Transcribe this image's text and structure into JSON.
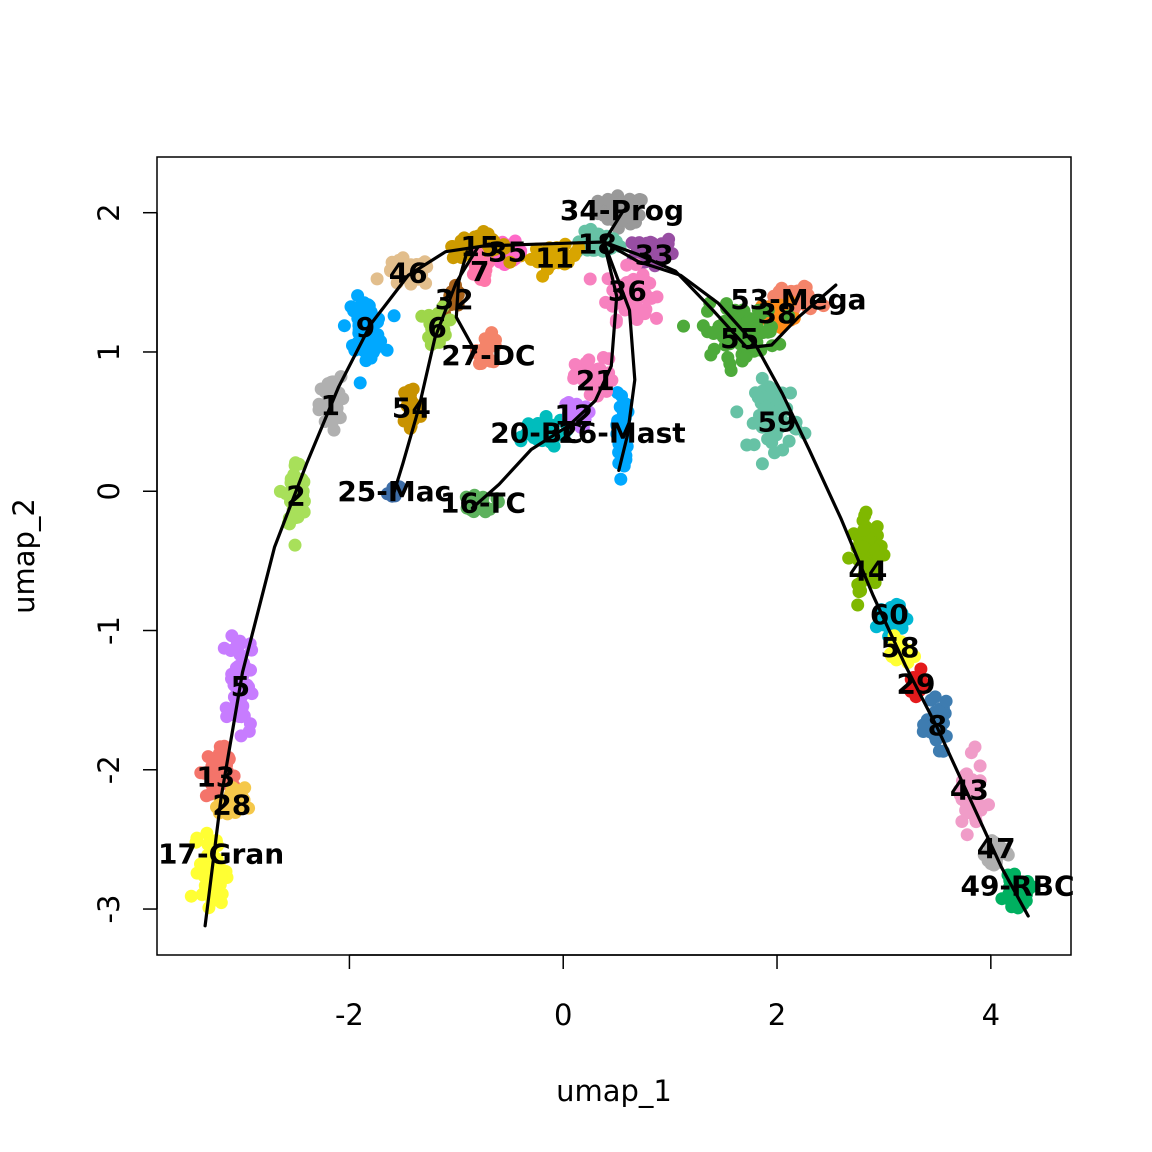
{
  "chart_data": {
    "type": "scatter",
    "title": "",
    "xlabel": "umap_1",
    "ylabel": "umap_2",
    "xlim": [
      -3.8,
      4.75
    ],
    "ylim": [
      -3.33,
      2.4
    ],
    "x_ticks": [
      -2,
      0,
      2,
      4
    ],
    "y_ticks": [
      -3,
      -2,
      -1,
      0,
      1,
      2
    ],
    "x_tick_labels": [
      "-2",
      "0",
      "2",
      "4"
    ],
    "y_tick_labels": [
      "-3",
      "-2",
      "-1",
      "0",
      "1",
      "2"
    ],
    "grid": false,
    "legend": "none",
    "clusters": [
      {
        "label": "34-Prog",
        "x": 0.55,
        "y": 2.02,
        "label_x": 0.55,
        "label_y": 2.02,
        "color": "#999999",
        "spread": [
          0.22,
          0.1
        ],
        "n": 60
      },
      {
        "label": "18",
        "x": 0.32,
        "y": 1.78,
        "label_x": 0.32,
        "label_y": 1.78,
        "color": "#66c2a5",
        "spread": [
          0.2,
          0.08
        ],
        "n": 50
      },
      {
        "label": "33",
        "x": 0.85,
        "y": 1.72,
        "label_x": 0.85,
        "label_y": 1.7,
        "color": "#984ea3",
        "spread": [
          0.18,
          0.12
        ],
        "n": 55
      },
      {
        "label": "36",
        "x": 0.6,
        "y": 1.42,
        "label_x": 0.6,
        "label_y": 1.44,
        "color": "#f781bf",
        "spread": [
          0.2,
          0.18
        ],
        "n": 60
      },
      {
        "label": "11",
        "x": -0.08,
        "y": 1.68,
        "label_x": -0.08,
        "label_y": 1.68,
        "color": "#d8a500",
        "spread": [
          0.22,
          0.08
        ],
        "n": 45
      },
      {
        "label": "35",
        "x": -0.52,
        "y": 1.72,
        "label_x": -0.52,
        "label_y": 1.72,
        "color": "#ff69c8",
        "spread": [
          0.15,
          0.07
        ],
        "n": 35
      },
      {
        "label": "15",
        "x": -0.78,
        "y": 1.76,
        "label_x": -0.78,
        "label_y": 1.76,
        "color": "#cc9a00",
        "spread": [
          0.25,
          0.09
        ],
        "n": 60
      },
      {
        "label": "7",
        "x": -0.78,
        "y": 1.58,
        "label_x": -0.78,
        "label_y": 1.58,
        "color": "#ff77aa",
        "spread": [
          0.1,
          0.08
        ],
        "n": 20
      },
      {
        "label": "46",
        "x": -1.45,
        "y": 1.57,
        "label_x": -1.45,
        "label_y": 1.57,
        "color": "#e2be8c",
        "spread": [
          0.22,
          0.1
        ],
        "n": 45
      },
      {
        "label": "32",
        "x": -1.02,
        "y": 1.38,
        "label_x": -1.02,
        "label_y": 1.38,
        "color": "#a6611a",
        "spread": [
          0.08,
          0.08
        ],
        "n": 15
      },
      {
        "label": "6",
        "x": -1.18,
        "y": 1.18,
        "label_x": -1.18,
        "label_y": 1.18,
        "color": "#9ed64a",
        "spread": [
          0.1,
          0.15
        ],
        "n": 35
      },
      {
        "label": "27-DC",
        "x": -0.7,
        "y": 1.02,
        "label_x": -0.7,
        "label_y": 0.98,
        "color": "#f4846a",
        "spread": [
          0.1,
          0.1
        ],
        "n": 25
      },
      {
        "label": "9",
        "x": -1.85,
        "y": 1.18,
        "label_x": -1.85,
        "label_y": 1.18,
        "color": "#00a8ff",
        "spread": [
          0.17,
          0.2
        ],
        "n": 60
      },
      {
        "label": "1",
        "x": -2.18,
        "y": 0.62,
        "label_x": -2.18,
        "label_y": 0.62,
        "color": "#b0b0b0",
        "spread": [
          0.1,
          0.2
        ],
        "n": 45
      },
      {
        "label": "54",
        "x": -1.42,
        "y": 0.6,
        "label_x": -1.42,
        "label_y": 0.6,
        "color": "#c89200",
        "spread": [
          0.08,
          0.2
        ],
        "n": 35
      },
      {
        "label": "2",
        "x": -2.5,
        "y": -0.03,
        "label_x": -2.5,
        "label_y": -0.03,
        "color": "#a8e05a",
        "spread": [
          0.1,
          0.25
        ],
        "n": 45
      },
      {
        "label": "25-Mac",
        "x": -1.58,
        "y": 0.0,
        "label_x": -1.58,
        "label_y": -0.0,
        "color": "#3e6ea8",
        "spread": [
          0.06,
          0.06
        ],
        "n": 12
      },
      {
        "label": "16-TC",
        "x": -0.75,
        "y": -0.08,
        "label_x": -0.75,
        "label_y": -0.08,
        "color": "#5cb15c",
        "spread": [
          0.12,
          0.07
        ],
        "n": 20
      },
      {
        "label": "20-BC",
        "x": -0.25,
        "y": 0.42,
        "label_x": -0.25,
        "label_y": 0.42,
        "color": "#00bdbd",
        "spread": [
          0.28,
          0.1
        ],
        "n": 40
      },
      {
        "label": "12",
        "x": 0.1,
        "y": 0.55,
        "label_x": 0.1,
        "label_y": 0.55,
        "color": "#c77cff",
        "spread": [
          0.12,
          0.1
        ],
        "n": 25
      },
      {
        "label": "26-Mast",
        "x": 0.55,
        "y": 0.42,
        "label_x": 0.55,
        "label_y": 0.42,
        "color": "#00a8ff",
        "spread": [
          0.05,
          0.3
        ],
        "n": 45
      },
      {
        "label": "21",
        "x": 0.3,
        "y": 0.8,
        "label_x": 0.3,
        "label_y": 0.8,
        "color": "#f781bf",
        "spread": [
          0.18,
          0.15
        ],
        "n": 45
      },
      {
        "label": "53-Mega",
        "x": 2.15,
        "y": 1.38,
        "label_x": 2.2,
        "label_y": 1.38,
        "color": "#f4846a",
        "spread": [
          0.25,
          0.1
        ],
        "n": 40
      },
      {
        "label": "38",
        "x": 2.0,
        "y": 1.28,
        "label_x": 2.0,
        "label_y": 1.28,
        "color": "#ff8c1a",
        "spread": [
          0.15,
          0.08
        ],
        "n": 30
      },
      {
        "label": "55",
        "x": 1.65,
        "y": 1.15,
        "label_x": 1.65,
        "label_y": 1.1,
        "color": "#4daa3a",
        "spread": [
          0.35,
          0.18
        ],
        "n": 90
      },
      {
        "label": "59",
        "x": 2.0,
        "y": 0.55,
        "label_x": 2.0,
        "label_y": 0.5,
        "color": "#66c2a5",
        "spread": [
          0.2,
          0.25
        ],
        "n": 60
      },
      {
        "label": "44",
        "x": 2.85,
        "y": -0.45,
        "label_x": 2.85,
        "label_y": -0.57,
        "color": "#7fb800",
        "spread": [
          0.15,
          0.25
        ],
        "n": 60
      },
      {
        "label": "60",
        "x": 3.05,
        "y": -0.9,
        "label_x": 3.05,
        "label_y": -0.88,
        "color": "#00b8d4",
        "spread": [
          0.12,
          0.12
        ],
        "n": 35
      },
      {
        "label": "58",
        "x": 3.15,
        "y": -1.15,
        "label_x": 3.15,
        "label_y": -1.12,
        "color": "#ffff33",
        "spread": [
          0.1,
          0.1
        ],
        "n": 30
      },
      {
        "label": "29",
        "x": 3.3,
        "y": -1.38,
        "label_x": 3.3,
        "label_y": -1.38,
        "color": "#e41a1c",
        "spread": [
          0.08,
          0.08
        ],
        "n": 25
      },
      {
        "label": "8",
        "x": 3.5,
        "y": -1.68,
        "label_x": 3.5,
        "label_y": -1.68,
        "color": "#3e7cb0",
        "spread": [
          0.1,
          0.15
        ],
        "n": 40
      },
      {
        "label": "43",
        "x": 3.8,
        "y": -2.2,
        "label_x": 3.8,
        "label_y": -2.14,
        "color": "#f09cc8",
        "spread": [
          0.12,
          0.25
        ],
        "n": 50
      },
      {
        "label": "47",
        "x": 4.05,
        "y": -2.6,
        "label_x": 4.05,
        "label_y": -2.56,
        "color": "#b0b0b0",
        "spread": [
          0.1,
          0.12
        ],
        "n": 30
      },
      {
        "label": "49-RBC",
        "x": 4.25,
        "y": -2.88,
        "label_x": 4.25,
        "label_y": -2.83,
        "color": "#00b060",
        "spread": [
          0.12,
          0.1
        ],
        "n": 45
      },
      {
        "label": "5",
        "x": -3.02,
        "y": -1.35,
        "label_x": -3.02,
        "label_y": -1.4,
        "color": "#c77cff",
        "spread": [
          0.1,
          0.35
        ],
        "n": 70
      },
      {
        "label": "13",
        "x": -3.25,
        "y": -2.02,
        "label_x": -3.25,
        "label_y": -2.05,
        "color": "#f4746a",
        "spread": [
          0.12,
          0.18
        ],
        "n": 50
      },
      {
        "label": "28",
        "x": -3.1,
        "y": -2.25,
        "label_x": -3.1,
        "label_y": -2.25,
        "color": "#f5c84a",
        "spread": [
          0.12,
          0.12
        ],
        "n": 35
      },
      {
        "label": "17-Gran",
        "x": -3.28,
        "y": -2.72,
        "label_x": -3.2,
        "label_y": -2.6,
        "color": "#ffff33",
        "spread": [
          0.12,
          0.25
        ],
        "n": 70
      }
    ],
    "trajectories": [
      [
        [
          -3.35,
          -3.12
        ],
        [
          -3.2,
          -2.2
        ],
        [
          -3.0,
          -1.3
        ],
        [
          -2.7,
          -0.4
        ],
        [
          -2.4,
          0.2
        ],
        [
          -2.1,
          0.75
        ],
        [
          -1.8,
          1.2
        ],
        [
          -1.45,
          1.55
        ],
        [
          -1.1,
          1.72
        ],
        [
          -0.75,
          1.76
        ],
        [
          -0.4,
          1.77
        ],
        [
          0.0,
          1.78
        ],
        [
          0.38,
          1.79
        ],
        [
          0.55,
          2.0
        ]
      ],
      [
        [
          0.38,
          1.79
        ],
        [
          0.7,
          1.65
        ],
        [
          1.1,
          1.55
        ],
        [
          1.45,
          1.35
        ],
        [
          1.8,
          1.05
        ],
        [
          2.05,
          0.7
        ],
        [
          2.3,
          0.3
        ],
        [
          2.6,
          -0.2
        ],
        [
          2.9,
          -0.75
        ],
        [
          3.2,
          -1.25
        ],
        [
          3.5,
          -1.7
        ],
        [
          3.8,
          -2.2
        ],
        [
          4.1,
          -2.7
        ],
        [
          4.35,
          -3.05
        ]
      ],
      [
        [
          0.38,
          1.79
        ],
        [
          0.7,
          1.7
        ],
        [
          1.05,
          1.58
        ],
        [
          1.4,
          1.3
        ],
        [
          1.72,
          1.03
        ],
        [
          1.95,
          1.05
        ],
        [
          2.2,
          1.25
        ],
        [
          2.55,
          1.48
        ]
      ],
      [
        [
          0.38,
          1.79
        ],
        [
          0.5,
          1.4
        ],
        [
          0.45,
          0.9
        ],
        [
          0.3,
          0.65
        ],
        [
          0.05,
          0.47
        ],
        [
          -0.3,
          0.3
        ],
        [
          -0.6,
          0.05
        ],
        [
          -0.85,
          -0.12
        ]
      ],
      [
        [
          0.38,
          1.79
        ],
        [
          0.62,
          1.3
        ],
        [
          0.67,
          0.8
        ],
        [
          0.6,
          0.4
        ],
        [
          0.52,
          0.15
        ]
      ],
      [
        [
          -0.8,
          1.75
        ],
        [
          -1.0,
          1.5
        ],
        [
          -1.2,
          1.1
        ],
        [
          -1.35,
          0.6
        ],
        [
          -1.5,
          0.2
        ],
        [
          -1.6,
          -0.05
        ]
      ],
      [
        [
          -0.9,
          1.72
        ],
        [
          -0.98,
          1.5
        ],
        [
          -1.0,
          1.25
        ],
        [
          -0.82,
          1.0
        ]
      ]
    ]
  }
}
